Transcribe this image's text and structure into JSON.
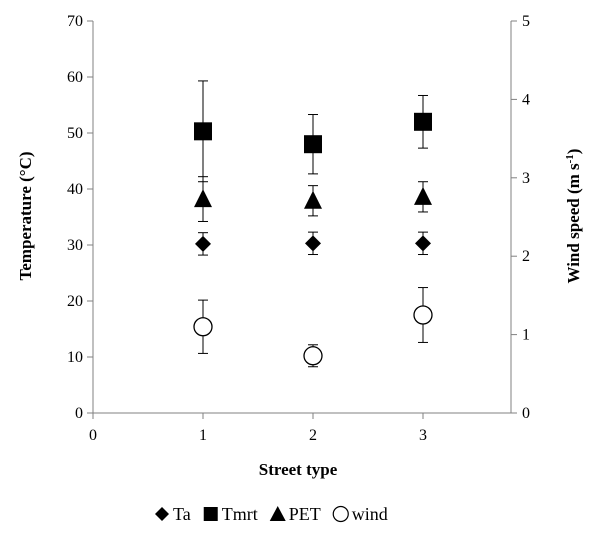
{
  "chart_data": {
    "type": "scatter",
    "xlabel": "Street type",
    "ylabel": "Temperature (°C)",
    "y2label_main": "Wind speed (m s",
    "y2label_sup": "-1",
    "y2label_end": ")",
    "xlim": [
      0,
      3.8
    ],
    "ylim": [
      0,
      70
    ],
    "y2lim": [
      0,
      5
    ],
    "xticks": [
      0,
      1,
      2,
      3
    ],
    "yticks": [
      0,
      10,
      20,
      30,
      40,
      50,
      60,
      70
    ],
    "y2ticks": [
      0,
      1,
      2,
      3,
      4,
      5
    ],
    "grid": false,
    "legend_position": "bottom",
    "series": [
      {
        "name": "Ta",
        "marker": "diamond",
        "axis": "left",
        "x": [
          1,
          2,
          3
        ],
        "y": [
          30.2,
          30.3,
          30.3
        ],
        "err": [
          2.0,
          2.0,
          2.0
        ]
      },
      {
        "name": "Tmrt",
        "marker": "square",
        "axis": "left",
        "x": [
          1,
          2,
          3
        ],
        "y": [
          50.3,
          48.0,
          52.0
        ],
        "err": [
          9.0,
          5.3,
          4.7
        ]
      },
      {
        "name": "PET",
        "marker": "triangle",
        "axis": "left",
        "x": [
          1,
          2,
          3
        ],
        "y": [
          38.2,
          37.9,
          38.6
        ],
        "err": [
          4.0,
          2.7,
          2.7
        ]
      },
      {
        "name": "wind",
        "marker": "circle",
        "axis": "right",
        "x": [
          1,
          2,
          3
        ],
        "y": [
          1.1,
          0.73,
          1.25
        ],
        "err": [
          0.34,
          0.14,
          0.35
        ]
      }
    ]
  }
}
